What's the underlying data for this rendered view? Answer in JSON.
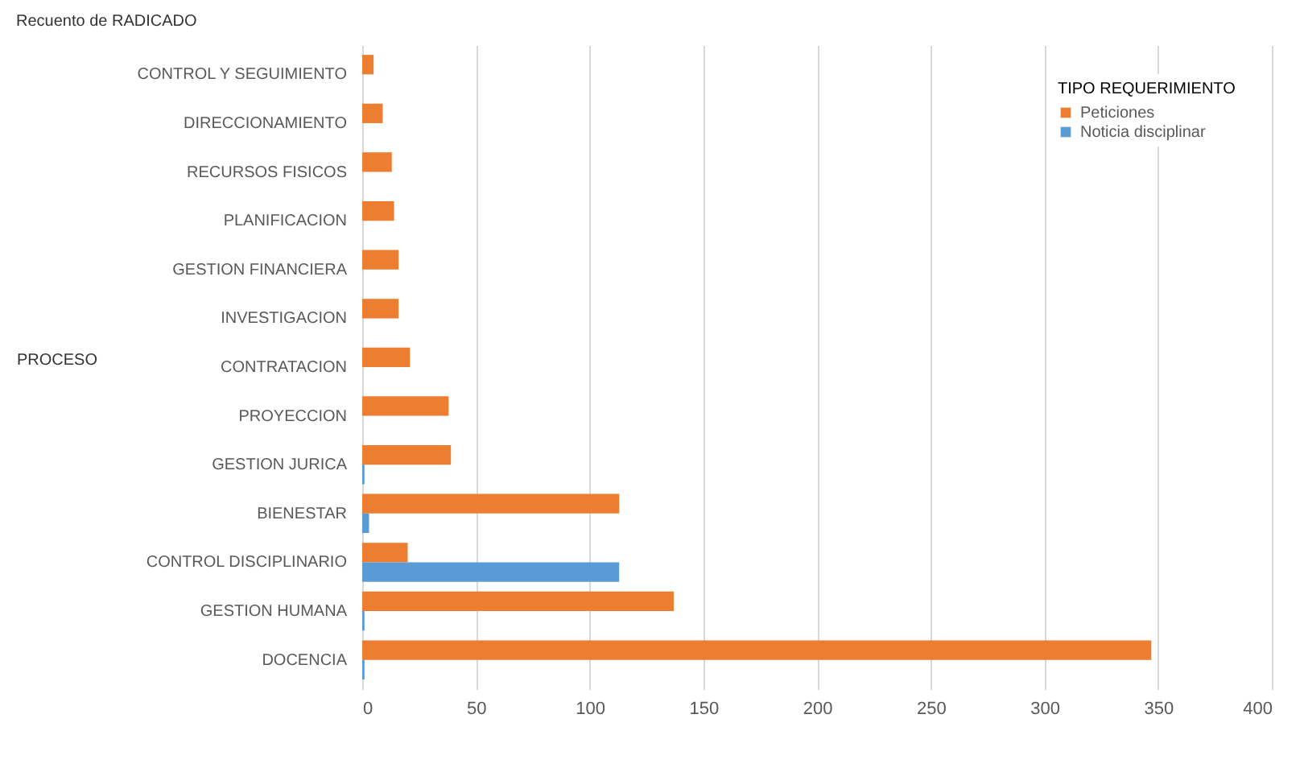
{
  "chart_data": {
    "type": "bar",
    "orientation": "horizontal",
    "title": "Recuento de RADICADO",
    "ylabel": "PROCESO",
    "legend_title": "TIPO REQUERIMIENTO",
    "categories": [
      "CONTROL Y SEGUIMIENTO",
      "DIRECCIONAMIENTO",
      "RECURSOS FISICOS",
      "PLANIFICACION",
      "GESTION  FINANCIERA",
      "INVESTIGACION",
      "CONTRATACION",
      "PROYECCION",
      "GESTION JURICA",
      "BIENESTAR",
      "CONTROL DISCIPLINARIO",
      "GESTION HUMANA",
      "DOCENCIA"
    ],
    "series": [
      {
        "name": "Peticiones",
        "color": "#ed7d31",
        "values": [
          5,
          9,
          13,
          14,
          16,
          16,
          21,
          38,
          39,
          113,
          20,
          137,
          347
        ]
      },
      {
        "name": "Noticia disciplinar",
        "color": "#5b9bd5",
        "values": [
          null,
          null,
          null,
          null,
          null,
          null,
          null,
          null,
          1,
          3,
          113,
          1,
          1
        ]
      }
    ],
    "xlim": [
      0,
      400
    ],
    "xticks": [
      0,
      50,
      100,
      150,
      200,
      250,
      300,
      350,
      400
    ],
    "grid": "x",
    "legend": "top right"
  }
}
